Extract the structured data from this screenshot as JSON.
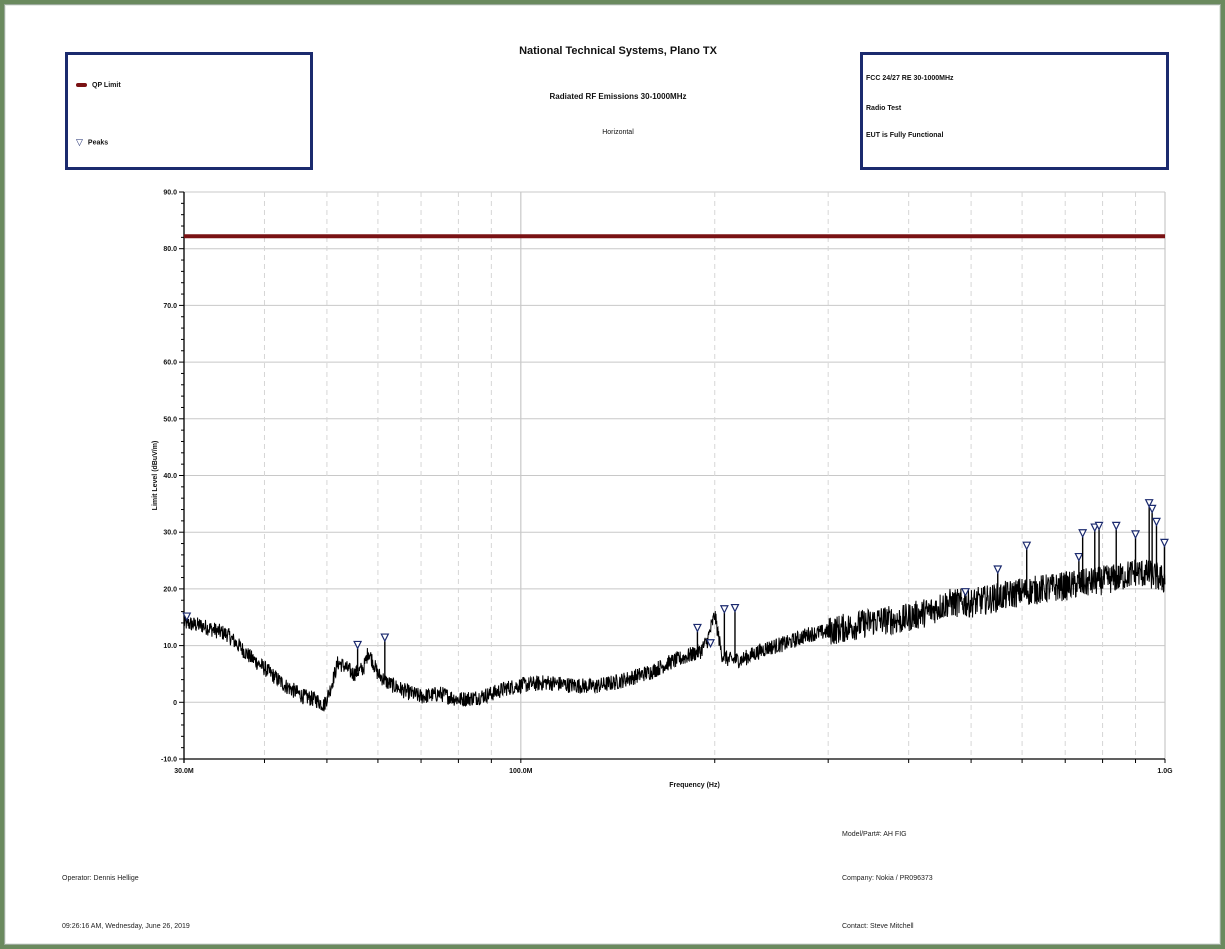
{
  "header": {
    "title": "National Technical Systems, Plano TX",
    "subtitle": "Radiated RF Emissions 30-1000MHz",
    "polarization": "Horizontal"
  },
  "legend": {
    "items": [
      {
        "label": "QP Limit",
        "kind": "line",
        "color": "#7a1214"
      },
      {
        "label": "Peaks",
        "kind": "triangle",
        "color": "#1b2a6e"
      }
    ]
  },
  "info": {
    "line1": "FCC  24/27 RE 30-1000MHz",
    "line2": "Radio Test",
    "line3": "EUT is Fully Functional"
  },
  "footer": {
    "model": "Model/Part#: AH FIG",
    "operator": "Operator: Dennis Hellige",
    "company": "Company: Nokia / PR096373",
    "datetime": "09:26:16 AM, Wednesday, June 26, 2019",
    "contact": "Contact: Steve Mitchell"
  },
  "chart_data": {
    "type": "line",
    "title": "National Technical Systems, Plano TX",
    "xlabel": "Frequency (Hz)",
    "ylabel": "Limit Level (dBuV/m)",
    "xscale": "log",
    "xlim": [
      30,
      1000
    ],
    "ylim": [
      -10,
      90
    ],
    "x_tick_labels": [
      {
        "value": 30,
        "label": "30.0M"
      },
      {
        "value": 100,
        "label": "100.0M"
      },
      {
        "value": 1000,
        "label": "1.0G"
      }
    ],
    "y_ticks": [
      -10,
      0,
      10,
      20,
      30,
      40,
      50,
      60,
      70,
      80,
      90
    ],
    "y_tick_labels": [
      "-10.0",
      "0",
      "10.0",
      "20.0",
      "30.0",
      "40.0",
      "50.0",
      "60.0",
      "70.0",
      "80.0",
      "90.0"
    ],
    "grid": true,
    "legend_position": "top-left box",
    "colors": {
      "limit": "#7a1214",
      "trace": "#000000",
      "peaks": "#1b2a6e",
      "grid": "#c8c8c8"
    },
    "series": [
      {
        "name": "QP Limit",
        "x": [
          30,
          1000
        ],
        "y": [
          82.2,
          82.2
        ]
      },
      {
        "name": "",
        "x": [
          30,
          32,
          35,
          38,
          40,
          43,
          46,
          48,
          49.5,
          50.5,
          52,
          53,
          55,
          57,
          58,
          60,
          62,
          66,
          70,
          75,
          80,
          85,
          90,
          95,
          100,
          110,
          120,
          130,
          140,
          150,
          160,
          170,
          180,
          190,
          195,
          200,
          205,
          210,
          220,
          240,
          260,
          280,
          300,
          330,
          360,
          390,
          400,
          430,
          460,
          500,
          550,
          600,
          650,
          700,
          750,
          800,
          850,
          900,
          950,
          1000
        ],
        "y": [
          14,
          13.5,
          12,
          8,
          6,
          3,
          1,
          0.5,
          -0.5,
          2,
          7,
          6.5,
          5,
          6,
          9,
          5,
          3.5,
          2,
          1,
          1.5,
          0.5,
          0.8,
          1.5,
          2.5,
          3,
          3.5,
          3,
          2.8,
          3.5,
          4.5,
          5.5,
          7,
          8,
          9,
          11,
          15.5,
          8.5,
          7.5,
          7.5,
          9.5,
          10.5,
          12,
          12.5,
          13.5,
          14.5,
          14.5,
          15,
          16,
          17.5,
          17.5,
          18.5,
          19.5,
          20,
          20.5,
          21,
          21.5,
          22,
          23,
          22.5,
          21.5
        ]
      }
    ],
    "peaks": [
      {
        "x": 30.3,
        "y": 14.5
      },
      {
        "x": 55.8,
        "y": 9.5
      },
      {
        "x": 61.5,
        "y": 10.8
      },
      {
        "x": 188,
        "y": 12.5
      },
      {
        "x": 197,
        "y": 9.8
      },
      {
        "x": 207,
        "y": 15.8
      },
      {
        "x": 215,
        "y": 16
      },
      {
        "x": 490,
        "y": 18.8
      },
      {
        "x": 550,
        "y": 22.8
      },
      {
        "x": 610,
        "y": 27
      },
      {
        "x": 735,
        "y": 25
      },
      {
        "x": 745,
        "y": 29.2
      },
      {
        "x": 778,
        "y": 30.2
      },
      {
        "x": 790,
        "y": 30.5
      },
      {
        "x": 840,
        "y": 30.5
      },
      {
        "x": 900,
        "y": 29
      },
      {
        "x": 945,
        "y": 34.5
      },
      {
        "x": 955,
        "y": 33.5
      },
      {
        "x": 970,
        "y": 31.2
      },
      {
        "x": 998,
        "y": 27.5
      }
    ]
  }
}
